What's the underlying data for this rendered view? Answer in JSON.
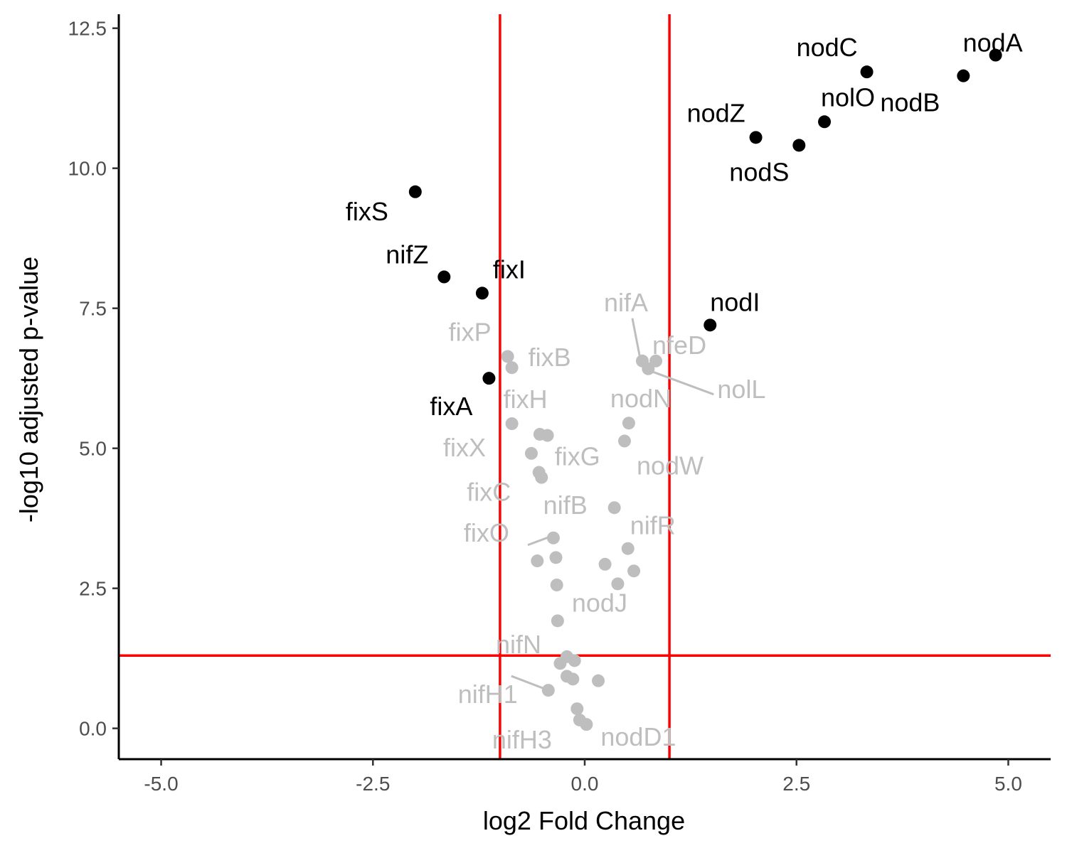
{
  "chart_data": {
    "type": "scatter",
    "xlabel": "log2 Fold Change",
    "ylabel": "-log10 adjusted p-value",
    "xlim": [
      -5.5,
      5.5
    ],
    "ylim": [
      -0.55,
      12.75
    ],
    "x_ticks": [
      -5.0,
      -2.5,
      0.0,
      2.5,
      5.0
    ],
    "x_tick_labels": [
      "-5.0",
      "-2.5",
      "0.0",
      "2.5",
      "5.0"
    ],
    "y_ticks": [
      0.0,
      2.5,
      5.0,
      7.5,
      10.0,
      12.5
    ],
    "y_tick_labels": [
      "0.0",
      "2.5",
      "5.0",
      "7.5",
      "10.0",
      "12.5"
    ],
    "grid": false,
    "thresholds": {
      "vertical_x": [
        -1,
        1
      ],
      "horizontal_y": 1.3,
      "color": "#ff0000"
    },
    "colors": {
      "significant": "#000000",
      "not_significant": "#bebebe"
    },
    "significant_points": [
      {
        "label": "nodA",
        "x": 4.85,
        "y": 12.02
      },
      {
        "label": "nodC",
        "x": 3.33,
        "y": 11.72
      },
      {
        "label": "nodB",
        "x": 4.47,
        "y": 11.65
      },
      {
        "label": "nolO",
        "x": 2.83,
        "y": 10.83
      },
      {
        "label": "nodZ",
        "x": 2.02,
        "y": 10.55
      },
      {
        "label": "nodS",
        "x": 2.53,
        "y": 10.41
      },
      {
        "label": "fixS",
        "x": -2.0,
        "y": 9.58
      },
      {
        "label": "nifZ",
        "x": -1.66,
        "y": 8.06
      },
      {
        "label": "fixI",
        "x": -1.21,
        "y": 7.77
      },
      {
        "label": "nodI",
        "x": 1.48,
        "y": 7.2
      },
      {
        "label": "fixA",
        "x": -1.13,
        "y": 6.25
      }
    ],
    "other_points": [
      {
        "label": "fixP",
        "x": -0.91,
        "y": 6.64
      },
      {
        "label": "fixB",
        "x": -0.86,
        "y": 6.44
      },
      {
        "label": "nifA",
        "x": 0.68,
        "y": 6.56
      },
      {
        "label": "nfeD",
        "x": 0.84,
        "y": 6.56
      },
      {
        "label": "nolL",
        "x": 0.75,
        "y": 6.42
      },
      {
        "label": "nodN",
        "x": 0.52,
        "y": 5.45
      },
      {
        "label": "fixH",
        "x": -0.86,
        "y": 5.44
      },
      {
        "label": "",
        "x": -0.53,
        "y": 5.25
      },
      {
        "label": "",
        "x": -0.44,
        "y": 5.23
      },
      {
        "label": "nodW",
        "x": 0.47,
        "y": 5.13
      },
      {
        "label": "fixX",
        "x": -0.63,
        "y": 4.91
      },
      {
        "label": "fixG",
        "x": -0.54,
        "y": 4.57
      },
      {
        "label": "fixC",
        "x": -0.51,
        "y": 4.48
      },
      {
        "label": "nifB",
        "x": 0.35,
        "y": 3.94
      },
      {
        "label": "fixO",
        "x": -0.37,
        "y": 3.4
      },
      {
        "label": "nifR",
        "x": 0.51,
        "y": 3.21
      },
      {
        "label": "",
        "x": -0.34,
        "y": 3.05
      },
      {
        "label": "",
        "x": -0.56,
        "y": 2.99
      },
      {
        "label": "",
        "x": 0.24,
        "y": 2.93
      },
      {
        "label": "",
        "x": 0.58,
        "y": 2.81
      },
      {
        "label": "",
        "x": -0.33,
        "y": 2.56
      },
      {
        "label": "",
        "x": 0.39,
        "y": 2.58
      },
      {
        "label": "nodJ",
        "x": -0.32,
        "y": 1.92
      },
      {
        "label": "nifN",
        "x": -0.21,
        "y": 1.28
      },
      {
        "label": "",
        "x": -0.12,
        "y": 1.21
      },
      {
        "label": "",
        "x": -0.29,
        "y": 1.16
      },
      {
        "label": "",
        "x": -0.21,
        "y": 0.93
      },
      {
        "label": "",
        "x": -0.14,
        "y": 0.88
      },
      {
        "label": "",
        "x": 0.16,
        "y": 0.85
      },
      {
        "label": "nifH1",
        "x": -0.43,
        "y": 0.68
      },
      {
        "label": "",
        "x": -0.09,
        "y": 0.35
      },
      {
        "label": "nifH3",
        "x": -0.06,
        "y": 0.15
      },
      {
        "label": "nodD1",
        "x": 0.02,
        "y": 0.07
      }
    ]
  }
}
